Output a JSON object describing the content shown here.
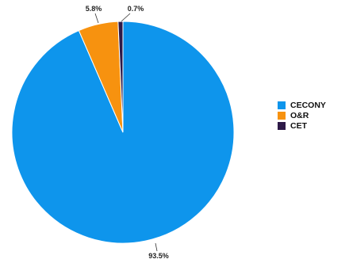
{
  "chart_data": {
    "type": "pie",
    "categories": [
      "CECONY",
      "O&R",
      "CET"
    ],
    "values": [
      93.5,
      5.8,
      0.7
    ],
    "value_labels": [
      "93.5%",
      "5.8%",
      "0.7%"
    ],
    "colors": [
      "#0e95ec",
      "#f7920f",
      "#2e1a48"
    ],
    "start_angle_deg": 0,
    "direction": "clockwise",
    "legend_position": "right"
  }
}
